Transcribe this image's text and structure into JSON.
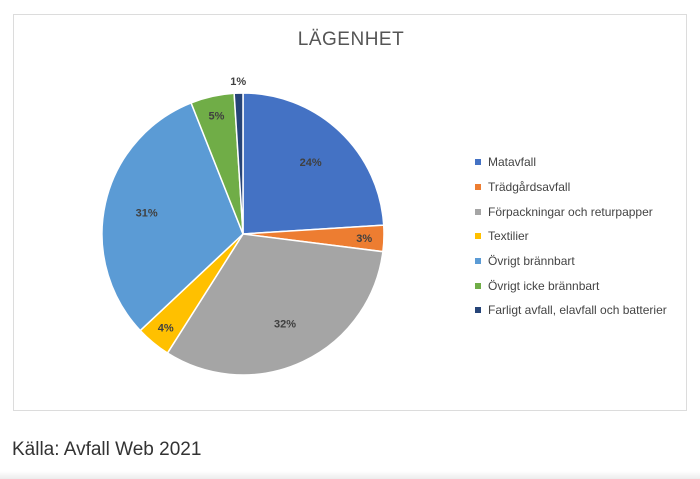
{
  "chart_data": {
    "type": "pie",
    "title": "LÄGENHET",
    "categories": [
      "Matavfall",
      "Trädgårdsavfall",
      "Förpackningar och returpapper",
      "Textilier",
      "Övrigt brännbart",
      "Övrigt icke brännbart",
      "Farligt avfall, elavfall och batterier"
    ],
    "values": [
      24,
      3,
      32,
      4,
      31,
      5,
      1
    ],
    "data_labels": [
      "24%",
      "3%",
      "32%",
      "4%",
      "31%",
      "5%",
      "1%"
    ],
    "colors": [
      "#4472c4",
      "#ed7d31",
      "#a5a5a5",
      "#ffc000",
      "#5b9bd5",
      "#70ad47",
      "#264478"
    ],
    "legend_position": "right",
    "start": "12 o'clock, clockwise"
  },
  "caption": "Källa: Avfall Web 2021"
}
